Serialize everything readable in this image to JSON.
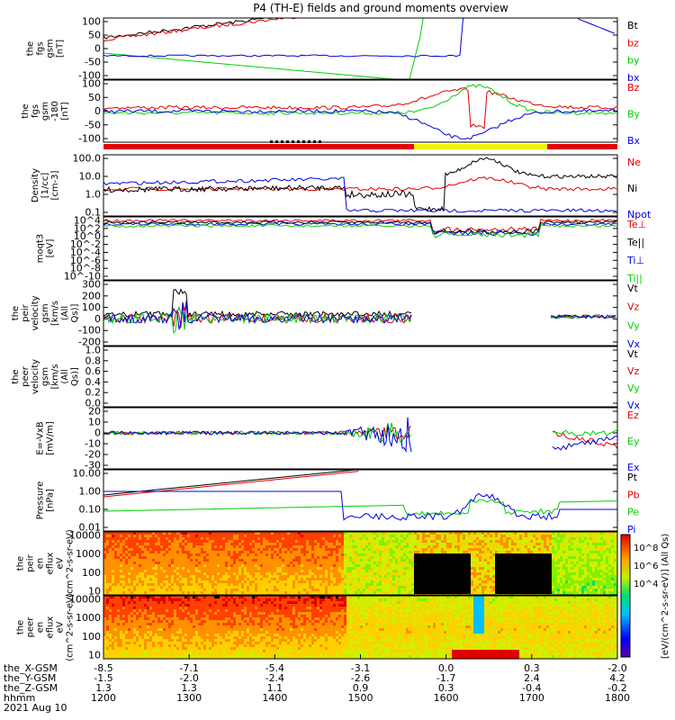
{
  "title": "P4 (TH-E) fields and ground moments overview",
  "date": "2021 Aug 10",
  "colors": {
    "black": "#000000",
    "red": "#e00000",
    "green": "#00d000",
    "blue": "#0000e0",
    "yellow": "#f0f000"
  },
  "ephemeris": {
    "labels": [
      "the_X-GSM",
      "the_Y-GSM",
      "the_Z-GSM",
      "hhmm"
    ],
    "rows": [
      [
        "-8.5",
        "-7.1",
        "-5.4",
        "-3.1",
        "0.0",
        "0.3",
        "-2.0"
      ],
      [
        "-1.5",
        "-2.0",
        "-2.4",
        "-2.6",
        "-1.7",
        "2.4",
        "4.2"
      ],
      [
        "1.3",
        "1.3",
        "1.1",
        "0.9",
        "0.3",
        "-0.4",
        "-0.2"
      ],
      [
        "1200",
        "1300",
        "1400",
        "1500",
        "1600",
        "1700",
        "1800"
      ]
    ]
  },
  "chart_data": [
    {
      "type": "line",
      "ylabel": "the fgs gsm [nT]",
      "ticks": [
        "100",
        "50",
        "0",
        "-50",
        "-100"
      ],
      "ylim": [
        -100,
        100
      ],
      "series": [
        {
          "name": "Bt",
          "color": "black"
        },
        {
          "name": "bz",
          "color": "red"
        },
        {
          "name": "by",
          "color": "green"
        },
        {
          "name": "bx",
          "color": "blue"
        }
      ]
    },
    {
      "type": "line",
      "ylabel": "the fgs gsm -180 [nT]",
      "ticks": [
        "100",
        "50",
        "0",
        "-50",
        "-100"
      ],
      "ylim": [
        -120,
        120
      ],
      "series": [
        {
          "name": "Bz",
          "color": "red"
        },
        {
          "name": "By",
          "color": "green"
        },
        {
          "name": "Bx",
          "color": "blue"
        }
      ]
    },
    {
      "type": "line",
      "ylabel": "Density [1/cc] [cm-3]",
      "ticks": [
        "100.0",
        "10.0",
        "1.0",
        "0.1"
      ],
      "scale": "log",
      "series": [
        {
          "name": "Ne",
          "color": "red"
        },
        {
          "name": "Ni",
          "color": "black"
        },
        {
          "name": "Npot",
          "color": "blue"
        }
      ]
    },
    {
      "type": "line",
      "ylabel": "moqt3 [eV]",
      "ticks": [
        "10^4",
        "10^2",
        "10^0",
        "10^-2",
        "10^-4",
        "10^-6",
        "10^-8",
        "10^-10"
      ],
      "scale": "log",
      "series": [
        {
          "name": "Te⊥",
          "color": "red"
        },
        {
          "name": "Te||",
          "color": "black"
        },
        {
          "name": "Ti⊥",
          "color": "blue"
        },
        {
          "name": "Ti||",
          "color": "green"
        }
      ]
    },
    {
      "type": "line",
      "ylabel": "the peir velocity gsm [km/s (All Qs)]",
      "ticks": [
        "300",
        "200",
        "100",
        "0",
        "-100",
        "-200"
      ],
      "ylim": [
        -200,
        300
      ],
      "series": [
        {
          "name": "Vt",
          "color": "black"
        },
        {
          "name": "Vz",
          "color": "red"
        },
        {
          "name": "Vy",
          "color": "green"
        },
        {
          "name": "Vx",
          "color": "blue"
        }
      ]
    },
    {
      "type": "line",
      "ylabel": "the peer velocity gsm [km/s (All Qs)]",
      "ticks": [
        "1.0",
        "0.8",
        "0.6",
        "0.4",
        "0.2",
        "0.0"
      ],
      "ylim": [
        0,
        1
      ],
      "series": [
        {
          "name": "Vt",
          "color": "black"
        },
        {
          "name": "Vz",
          "color": "red"
        },
        {
          "name": "Vy",
          "color": "green"
        },
        {
          "name": "Vx",
          "color": "blue"
        }
      ]
    },
    {
      "type": "line",
      "ylabel": "E=-VxB [mV/m]",
      "ticks": [
        "20",
        "10",
        "0",
        "-10",
        "-20",
        "-30"
      ],
      "ylim": [
        -30,
        20
      ],
      "series": [
        {
          "name": "Ez",
          "color": "red"
        },
        {
          "name": "Ey",
          "color": "green"
        },
        {
          "name": "Ex",
          "color": "blue"
        }
      ]
    },
    {
      "type": "line",
      "ylabel": "Pressure [nPa]",
      "ticks": [
        "10.00",
        "1.00",
        "0.10",
        "0.01"
      ],
      "scale": "log",
      "series": [
        {
          "name": "Pt",
          "color": "black"
        },
        {
          "name": "Pb",
          "color": "red"
        },
        {
          "name": "Pe",
          "color": "green"
        },
        {
          "name": "Pi",
          "color": "blue"
        }
      ]
    },
    {
      "type": "heatmap",
      "ylabel": "the peir en eflux eV (cm^2-s-sr-eV)",
      "ticks": [
        "10000",
        "1000",
        "100",
        "10"
      ]
    },
    {
      "type": "heatmap",
      "ylabel": "the peer en eflux eV (cm^2-s-sr-eV)",
      "ticks": [
        "10000",
        "1000",
        "100",
        "10"
      ]
    }
  ],
  "colorbar": {
    "label": "[eV/(cm^2-s-sr-eV)] (All Qs)",
    "ticks": [
      "10^8",
      "10^6",
      "10^4"
    ]
  }
}
